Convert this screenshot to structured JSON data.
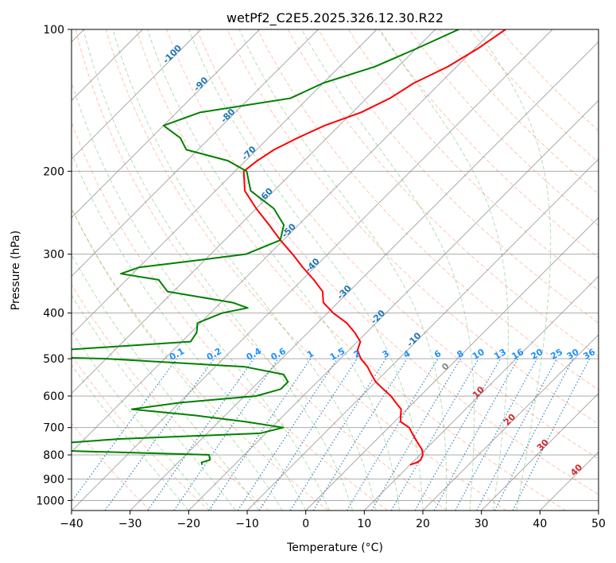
{
  "chart_data": {
    "type": "line",
    "title": "wetPf2_C2E5.2025.326.12.30.R22",
    "xlabel": "Temperature (°C)",
    "ylabel": "Pressure (hPa)",
    "xlim": [
      -40,
      50
    ],
    "ylim": [
      1050,
      100
    ],
    "y_scale": "log",
    "skew": true,
    "grid": true,
    "x_ticks": [
      -40,
      -30,
      -20,
      -10,
      0,
      10,
      20,
      30,
      40,
      50
    ],
    "y_ticks": [
      100,
      200,
      300,
      400,
      500,
      600,
      700,
      800,
      900,
      1000
    ],
    "series": [
      {
        "color": "#ff0000",
        "pressure": [
          100,
          110,
          120,
          130,
          140,
          150,
          160,
          170,
          180,
          190,
          200,
          220,
          240,
          260,
          280,
          300,
          320,
          340,
          360,
          380,
          400,
          420,
          440,
          460,
          480,
          500,
          520,
          540,
          560,
          580,
          600,
          620,
          640,
          660,
          680,
          700,
          720,
          740,
          760,
          780,
          800,
          820,
          830,
          840
        ],
        "values": [
          -48.0,
          -49.5,
          -51.5,
          -54.5,
          -56.0,
          -58.5,
          -62.5,
          -65.0,
          -67.0,
          -68.0,
          -68.5,
          -65.0,
          -60.0,
          -55.0,
          -50.5,
          -46.0,
          -42.0,
          -38.0,
          -34.5,
          -32.5,
          -29.0,
          -25.0,
          -22.0,
          -19.5,
          -18.5,
          -16.5,
          -14.0,
          -12.0,
          -10.0,
          -7.5,
          -5.0,
          -3.0,
          -1.0,
          0.0,
          1.0,
          3.5,
          5.0,
          6.5,
          8.0,
          9.5,
          10.5,
          11.0,
          10.8,
          10.0
        ]
      },
      {
        "color": "#008000",
        "pressure": [
          100,
          110,
          120,
          130,
          140,
          150,
          160,
          170,
          180,
          190,
          200,
          220,
          240,
          260,
          280,
          300,
          310,
          320,
          330,
          340,
          360,
          380,
          390,
          400,
          420,
          440,
          460,
          480,
          490,
          500,
          520,
          540,
          560,
          580,
          600,
          620,
          640,
          660,
          680,
          700,
          720,
          740,
          760,
          780,
          800,
          820,
          830,
          840
        ],
        "values": [
          -56.0,
          -60.0,
          -64.0,
          -70.0,
          -73.0,
          -86.0,
          -90.0,
          -85.0,
          -82.0,
          -73.0,
          -68.0,
          -64.0,
          -57.0,
          -52.5,
          -50.5,
          -54.0,
          -62.0,
          -70.0,
          -72.0,
          -64.5,
          -61.0,
          -48.0,
          -44.5,
          -48.0,
          -50.5,
          -49.0,
          -48.5,
          -70.0,
          -89.0,
          -60.0,
          -35.0,
          -27.0,
          -25.0,
          -25.0,
          -28.0,
          -40.0,
          -47.0,
          -35.0,
          -25.5,
          -18.0,
          -21.0,
          -44.0,
          -56.0,
          -58.0,
          -26.0,
          -25.0,
          -26.0,
          -25.5
        ]
      }
    ],
    "dry_adiabats_c": [
      -30,
      -20,
      -10,
      0,
      10,
      20,
      30,
      40,
      50,
      60,
      70,
      80,
      90,
      100,
      110,
      120,
      130,
      140,
      150,
      160
    ],
    "moist_adiabats_c": [
      -20,
      -16,
      -12,
      -8,
      -4,
      0,
      4,
      8,
      12,
      16,
      20,
      24,
      28,
      32,
      36
    ],
    "mixing_ratio_lines": [
      {
        "w": 0.1,
        "label": "0.1"
      },
      {
        "w": 0.2,
        "label": "0.2"
      },
      {
        "w": 0.4,
        "label": "0.4"
      },
      {
        "w": 0.6,
        "label": "0.6"
      },
      {
        "w": 1,
        "label": "1"
      },
      {
        "w": 1.5,
        "label": "1.5"
      },
      {
        "w": 2,
        "label": "2"
      },
      {
        "w": 3,
        "label": "3"
      },
      {
        "w": 4,
        "label": "4"
      },
      {
        "w": 6,
        "label": "6"
      },
      {
        "w": 8,
        "label": "8"
      },
      {
        "w": 10,
        "label": "10"
      },
      {
        "w": 13,
        "label": "13"
      },
      {
        "w": 16,
        "label": "16"
      },
      {
        "w": 20,
        "label": "20"
      },
      {
        "w": 25,
        "label": "25"
      },
      {
        "w": 30,
        "label": "30"
      },
      {
        "w": 36,
        "label": "36"
      }
    ],
    "freezing_labels": [
      {
        "t": -100,
        "p": 114,
        "label": "-100"
      },
      {
        "t": -90,
        "p": 132,
        "label": "-90"
      },
      {
        "t": -80,
        "p": 154,
        "label": "-80"
      },
      {
        "t": -70,
        "p": 185,
        "label": "-70"
      },
      {
        "t": -60,
        "p": 227,
        "label": "-60"
      },
      {
        "t": -50,
        "p": 270,
        "label": "-50"
      },
      {
        "t": -40,
        "p": 320,
        "label": "-40"
      },
      {
        "t": -30,
        "p": 365,
        "label": "-30"
      },
      {
        "t": -20,
        "p": 412,
        "label": "-20"
      },
      {
        "t": -10,
        "p": 460,
        "label": "-10"
      }
    ],
    "warm_labels": [
      {
        "t": 0,
        "p": 525,
        "label": "0",
        "color": "#888888"
      },
      {
        "t": 10,
        "p": 595,
        "label": "10",
        "color": "#d62728"
      },
      {
        "t": 20,
        "p": 680,
        "label": "20",
        "color": "#d62728"
      },
      {
        "t": 30,
        "p": 770,
        "label": "30",
        "color": "#d62728"
      },
      {
        "t": 40,
        "p": 870,
        "label": "40",
        "color": "#d62728"
      }
    ],
    "colors": {
      "temperature": "#ff0000",
      "dewpoint": "#008000",
      "isotherm": "#808080",
      "dry_adiabat": "#ff7f50",
      "moist_adiabat": "#2ca02c",
      "mixing_ratio": "#1f77b4",
      "freezing_label": "#1f77b4",
      "mixing_label": "#1e90ff",
      "warm_label": "#d62728"
    }
  }
}
